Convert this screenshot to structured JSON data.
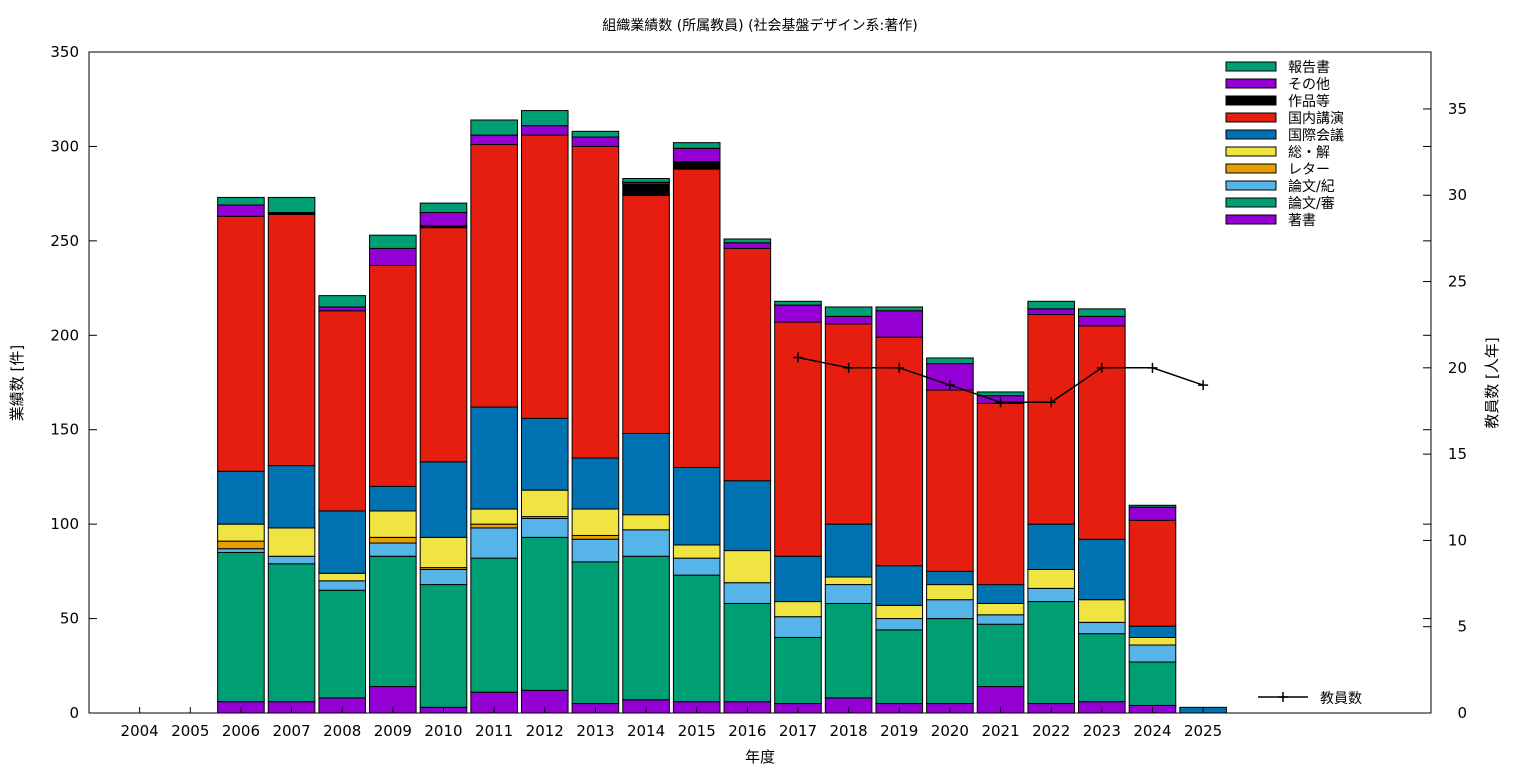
{
  "chart_data": {
    "type": "bar",
    "stacked": true,
    "title": "組織業績数 (所属教員) (社会基盤デザイン系:著作)",
    "xlabel": "年度",
    "ylabel": "業績数 [件]",
    "y2label": "教員数 [人年]",
    "ylim": [
      0,
      350
    ],
    "y2lim": [
      0,
      38.3
    ],
    "yticks": [
      "0",
      "50",
      "100",
      "150",
      "200",
      "250",
      "300",
      "350"
    ],
    "y2ticks": [
      "0",
      "5",
      "10",
      "15",
      "20",
      "25",
      "30",
      "35"
    ],
    "grid": false,
    "legend_position": "top-right",
    "categories": [
      "2004",
      "2005",
      "2006",
      "2007",
      "2008",
      "2009",
      "2010",
      "2011",
      "2012",
      "2013",
      "2014",
      "2015",
      "2016",
      "2017",
      "2018",
      "2019",
      "2020",
      "2021",
      "2022",
      "2023",
      "2024",
      "2025"
    ],
    "series": [
      {
        "name": "著書",
        "color": "#9400d3",
        "values": [
          0,
          0,
          6,
          6,
          8,
          14,
          3,
          11,
          12,
          5,
          7,
          6,
          6,
          5,
          8,
          5,
          5,
          14,
          5,
          6,
          4,
          0
        ]
      },
      {
        "name": "論文/審",
        "color": "#009e73",
        "values": [
          0,
          0,
          79,
          73,
          57,
          69,
          65,
          71,
          81,
          75,
          76,
          67,
          52,
          35,
          50,
          39,
          45,
          33,
          54,
          36,
          23,
          0
        ]
      },
      {
        "name": "論文/紀",
        "color": "#56b4e9",
        "values": [
          0,
          0,
          2,
          4,
          5,
          7,
          8,
          16,
          10,
          12,
          14,
          9,
          11,
          11,
          10,
          6,
          10,
          5,
          7,
          6,
          9,
          0
        ]
      },
      {
        "name": "レター",
        "color": "#e69f00",
        "values": [
          0,
          0,
          4,
          0,
          0,
          3,
          1,
          2,
          1,
          2,
          0,
          0,
          0,
          0,
          0,
          0,
          0,
          0,
          0,
          0,
          0,
          0
        ]
      },
      {
        "name": "総・解",
        "color": "#f0e442",
        "values": [
          0,
          0,
          9,
          15,
          4,
          14,
          16,
          8,
          14,
          14,
          8,
          7,
          17,
          8,
          4,
          7,
          8,
          6,
          10,
          12,
          4,
          0
        ]
      },
      {
        "name": "国際会議",
        "color": "#0072b2",
        "values": [
          0,
          0,
          28,
          33,
          33,
          13,
          40,
          54,
          38,
          27,
          43,
          41,
          37,
          24,
          28,
          21,
          7,
          10,
          24,
          32,
          6,
          3
        ]
      },
      {
        "name": "国内講演",
        "color": "#e51e10",
        "values": [
          0,
          0,
          135,
          133,
          106,
          117,
          124,
          139,
          150,
          165,
          126,
          158,
          123,
          124,
          106,
          121,
          96,
          96,
          111,
          113,
          56,
          0
        ]
      },
      {
        "name": "作品等",
        "color": "#000000",
        "values": [
          0,
          0,
          0,
          1,
          0,
          0,
          1,
          0,
          0,
          0,
          6,
          4,
          0,
          0,
          0,
          0,
          0,
          0,
          0,
          0,
          0,
          0
        ]
      },
      {
        "name": "その他",
        "color": "#9400d3",
        "values": [
          0,
          0,
          6,
          0,
          2,
          9,
          7,
          5,
          5,
          5,
          1,
          7,
          3,
          9,
          4,
          14,
          14,
          4,
          3,
          5,
          7,
          0
        ]
      },
      {
        "name": "報告書",
        "color": "#009e73",
        "values": [
          0,
          0,
          4,
          8,
          6,
          7,
          5,
          8,
          8,
          3,
          2,
          3,
          2,
          2,
          5,
          2,
          3,
          2,
          4,
          4,
          1,
          0
        ]
      }
    ],
    "line_series": {
      "name": "教員数",
      "axis": "y2",
      "color": "#000000",
      "points": [
        {
          "x": "2017",
          "y": 20.6
        },
        {
          "x": "2018",
          "y": 20.0
        },
        {
          "x": "2019",
          "y": 20.0
        },
        {
          "x": "2020",
          "y": 19.0
        },
        {
          "x": "2021",
          "y": 18.0
        },
        {
          "x": "2022",
          "y": 18.0
        },
        {
          "x": "2023",
          "y": 20.0
        },
        {
          "x": "2024",
          "y": 20.0
        },
        {
          "x": "2025",
          "y": 19.0
        }
      ]
    },
    "legend_order": [
      "報告書",
      "その他",
      "作品等",
      "国内講演",
      "国際会議",
      "総・解",
      "レター",
      "論文/紀",
      "論文/審",
      "著書"
    ]
  }
}
